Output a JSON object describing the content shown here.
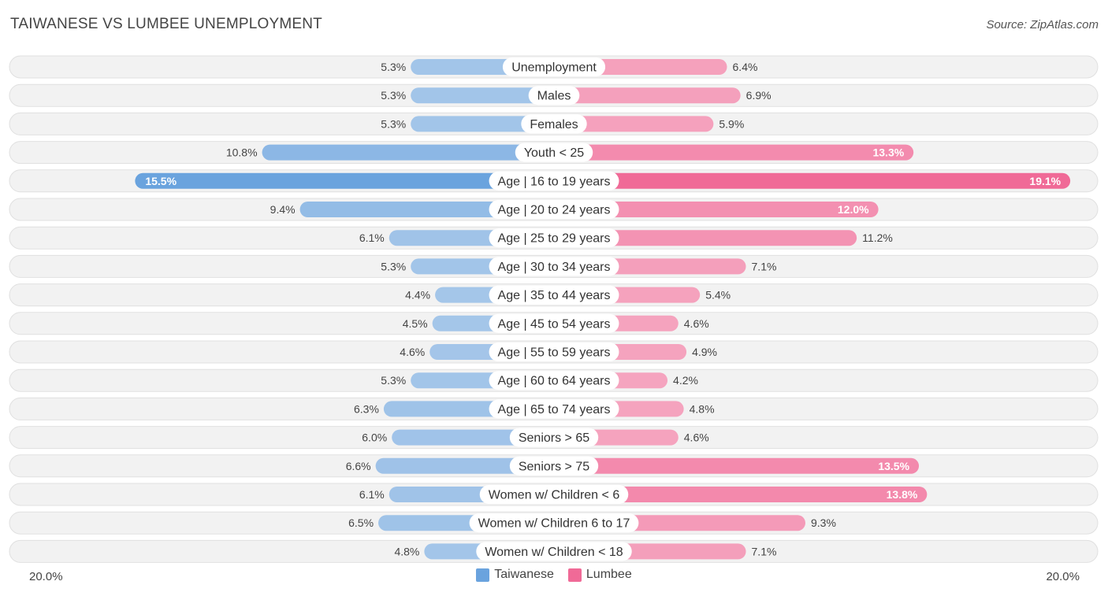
{
  "title": "TAIWANESE VS LUMBEE UNEMPLOYMENT",
  "source": "Source: ZipAtlas.com",
  "colors": {
    "left_light": "#a8c8ea",
    "left_strong": "#6aa3de",
    "right_light": "#f5a6c0",
    "right_strong": "#f06a97",
    "row_bg": "#f2f2f2",
    "row_border": "#e0e0e0"
  },
  "chart_data": {
    "type": "bar",
    "orientation": "diverging-horizontal",
    "title": "TAIWANESE VS LUMBEE UNEMPLOYMENT",
    "axis_min_label": "20.0%",
    "axis_max_label": "20.0%",
    "xlim": [
      -20,
      20
    ],
    "categories": [
      "Unemployment",
      "Males",
      "Females",
      "Youth < 25",
      "Age | 16 to 19 years",
      "Age | 20 to 24 years",
      "Age | 25 to 29 years",
      "Age | 30 to 34 years",
      "Age | 35 to 44 years",
      "Age | 45 to 54 years",
      "Age | 55 to 59 years",
      "Age | 60 to 64 years",
      "Age | 65 to 74 years",
      "Seniors > 65",
      "Seniors > 75",
      "Women w/ Children < 6",
      "Women w/ Children 6 to 17",
      "Women w/ Children < 18"
    ],
    "series": [
      {
        "name": "Taiwanese",
        "values": [
          5.3,
          5.3,
          5.3,
          10.8,
          15.5,
          9.4,
          6.1,
          5.3,
          4.4,
          4.5,
          4.6,
          5.3,
          6.3,
          6.0,
          6.6,
          6.1,
          6.5,
          4.8
        ],
        "labels": [
          "5.3%",
          "5.3%",
          "5.3%",
          "10.8%",
          "15.5%",
          "9.4%",
          "6.1%",
          "5.3%",
          "4.4%",
          "4.5%",
          "4.6%",
          "5.3%",
          "6.3%",
          "6.0%",
          "6.6%",
          "6.1%",
          "6.5%",
          "4.8%"
        ]
      },
      {
        "name": "Lumbee",
        "values": [
          6.4,
          6.9,
          5.9,
          13.3,
          19.1,
          12.0,
          11.2,
          7.1,
          5.4,
          4.6,
          4.9,
          4.2,
          4.8,
          4.6,
          13.5,
          13.8,
          9.3,
          7.1
        ],
        "labels": [
          "6.4%",
          "6.9%",
          "5.9%",
          "13.3%",
          "19.1%",
          "12.0%",
          "11.2%",
          "7.1%",
          "5.4%",
          "4.6%",
          "4.9%",
          "4.2%",
          "4.8%",
          "4.6%",
          "13.5%",
          "13.8%",
          "9.3%",
          "7.1%"
        ]
      }
    ],
    "legend": [
      "Taiwanese",
      "Lumbee"
    ],
    "legend_position": "bottom-center"
  }
}
